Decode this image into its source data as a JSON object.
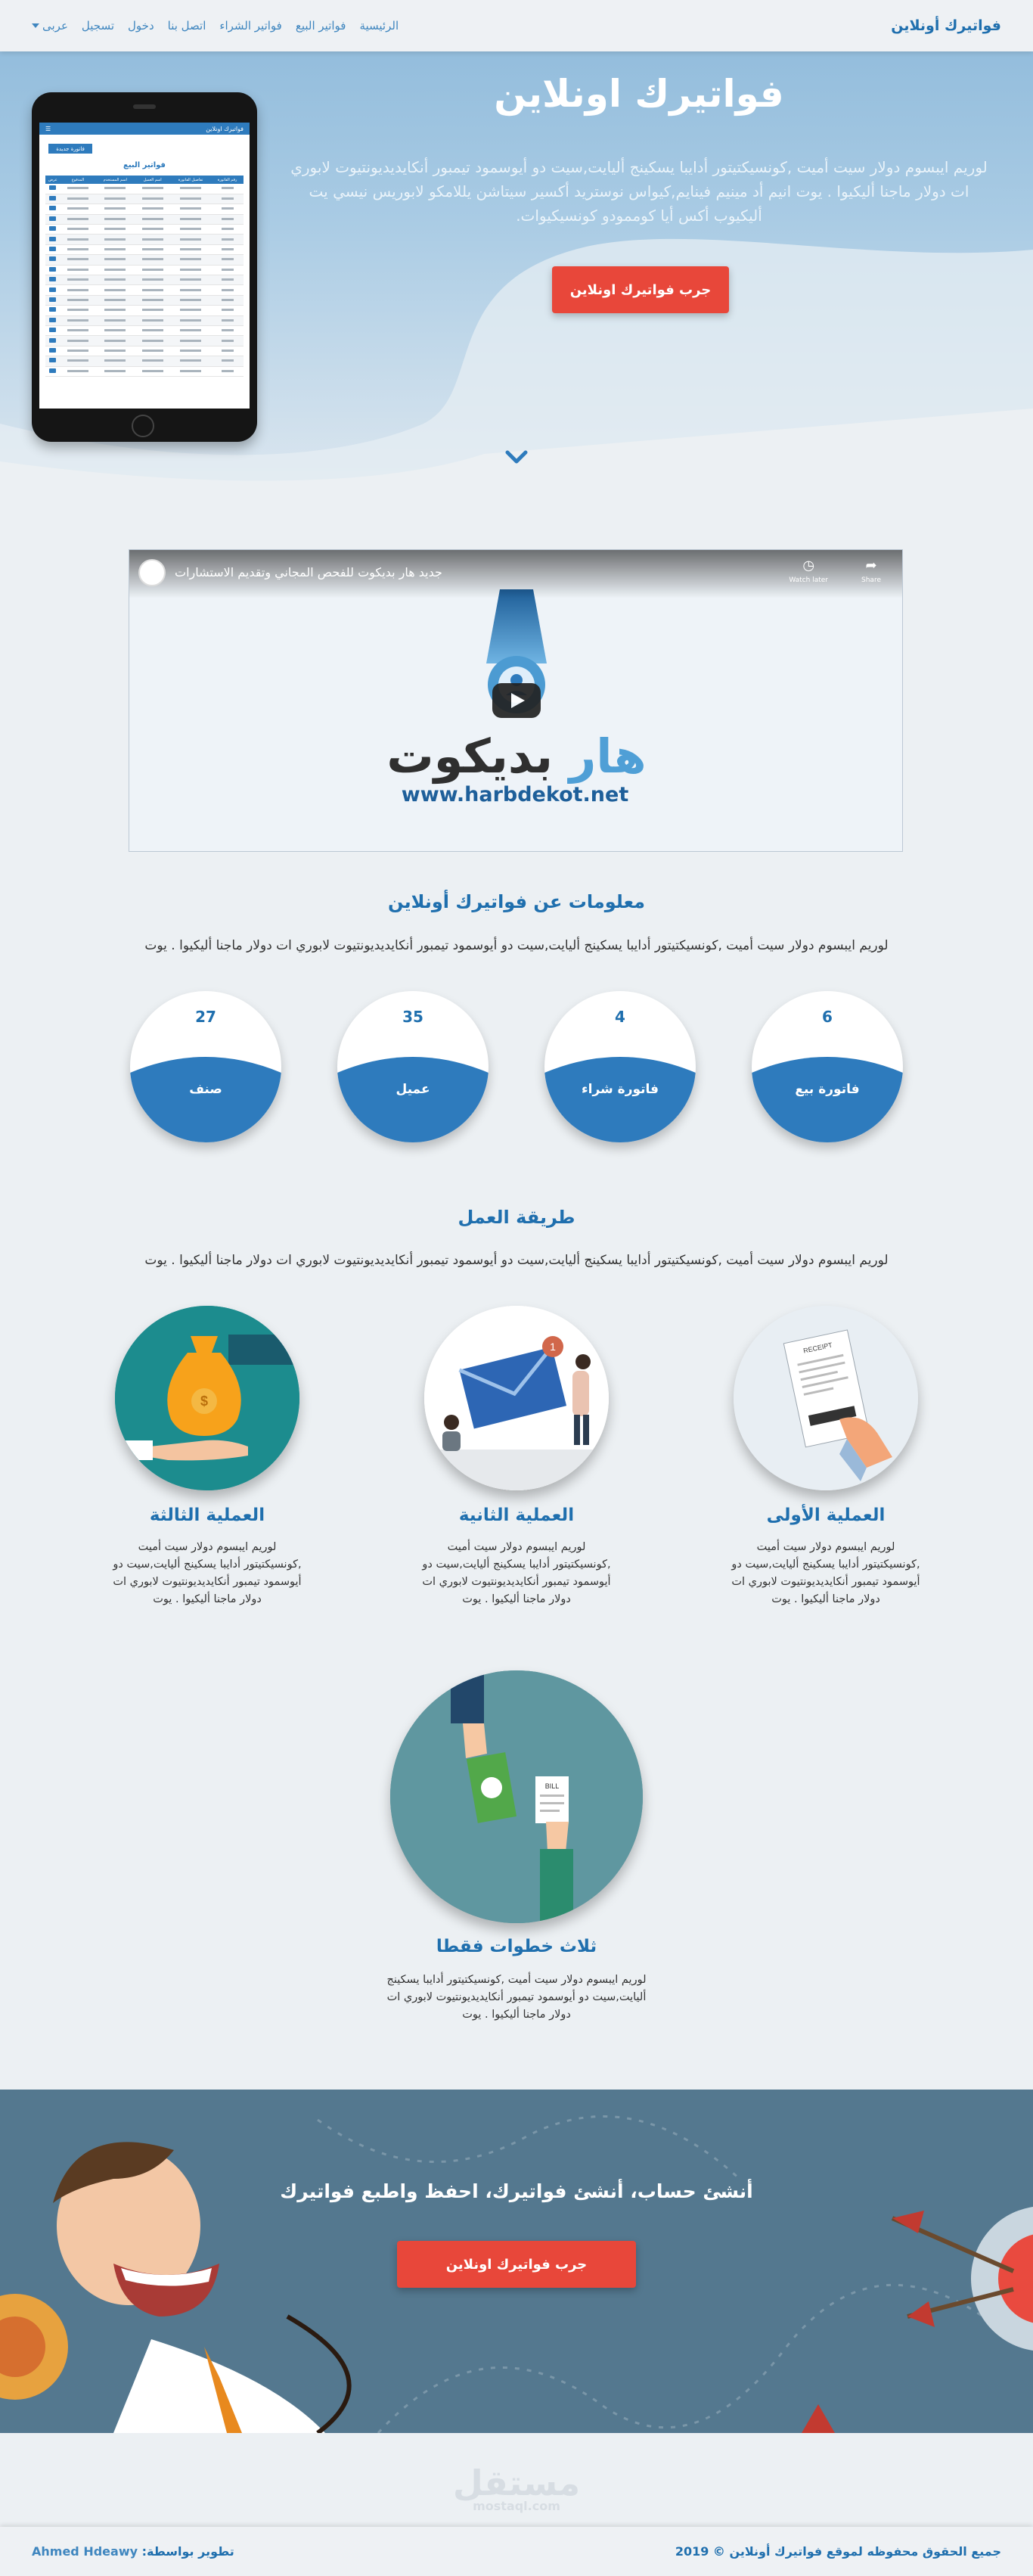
{
  "nav": {
    "brand": "فواتيرك أونلاين",
    "links": [
      "الرئيسية",
      "فواتير البيع",
      "فواتير الشراء",
      "اتصل بنا",
      "دخول",
      "تسجيل"
    ],
    "language": "عربى"
  },
  "hero": {
    "title": "فواتيرك اونلاين",
    "text": "لوريم ايبسوم دولار سيت أميت ,كونسيكتيتور أدايبا يسكينج أليايت,سيت دو أيوسمود تيمبور أنكايديديونتيوت لابوري ات دولار ماجنا أليكيوا . يوت انيم أد مينيم فينايم,كيواس نوستريد أكسير سيتاشن يللامكو لابوريس نيسي يت أليكيوب أكس أيا كوممودو كونسيكيوات.",
    "button": "جرب فواتيرك اونلاين"
  },
  "phone": {
    "app_title": "فواتيرك اونلاين",
    "new_button": "فاتورة جديدة",
    "table_title": "فواتير البيع",
    "columns": [
      "رقم الفاتورة",
      "تفاصيل الفاتورة",
      "اسم العميل",
      "اسم المستخدم",
      "المدفوع",
      "عرض"
    ]
  },
  "video": {
    "title": "جديد هار بديكوت للفحص المجاني وتقديم الاستشارات",
    "watch_later": "Watch later",
    "share": "Share",
    "brand_dark": "بديكوت",
    "brand_light": "هار",
    "url": "www.harbdekot.net"
  },
  "info": {
    "title": "معلومات عن فواتيرك أونلاين",
    "text": "لوريم ايبسوم دولار سيت أميت ,كونسيكتيتور أدايبا يسكينج أليايت,سيت دو أيوسمود تيمبور أنكايديديونتيوت لابوري ات دولار ماجنا أليكيوا . يوت",
    "stats": [
      {
        "number": "6",
        "label": "فاتورة بيع"
      },
      {
        "number": "4",
        "label": "فاتورة شراء"
      },
      {
        "number": "35",
        "label": "عميل"
      },
      {
        "number": "27",
        "label": "صنف"
      }
    ]
  },
  "work": {
    "title": "طريقة العمل",
    "text": "لوريم ايبسوم دولار سيت أميت ,كونسيكتيتور أدايبا يسكينج أليايت,سيت دو أيوسمود تيمبور أنكايديديونتيوت لابوري ات دولار ماجنا أليكيوا . يوت",
    "steps": [
      {
        "title": "العملية الأولى",
        "text": "لوريم ايبسوم دولار سيت أميت ,كونسيكتيتور أدايبا يسكينج أليايت,سيت دو أيوسمود تيمبور أنكايديديونتيوت لابوري ات دولار ماجنا أليكيوا . يوت"
      },
      {
        "title": "العملية الثانية",
        "text": "لوريم ايبسوم دولار سيت أميت ,كونسيكتيتور أدايبا يسكينج أليايت,سيت دو أيوسمود تيمبور أنكايديديونتيوت لابوري ات دولار ماجنا أليكيوا . يوت"
      },
      {
        "title": "العملية الثالثة",
        "text": "لوريم ايبسوم دولار سيت أميت ,كونسيكتيتور أدايبا يسكينج أليايت,سيت دو أيوسمود تيمبور أنكايديديونتيوت لابوري ات دولار ماجنا أليكيوا . يوت"
      },
      {
        "title": "ثلاث خطوات فقطا",
        "text": "لوريم ايبسوم دولار سيت أميت ,كونسيكتيتور أدايبا يسكينج أليايت,سيت دو أيوسمود تيمبور أنكايديديونتيوت لابوري ات دولار ماجنا أليكيوا . يوت"
      }
    ],
    "receipt_label": "RECEIPT",
    "bill_label": "BILL"
  },
  "cta": {
    "title": "أنشئ حساب، أنشئ فواتيرك، احفظ واطبع فواتيرك",
    "button": "جرب فواتيرك اونلاين"
  },
  "watermark": {
    "arabic": "مستقل",
    "latin": "mostaql.com"
  },
  "footer": {
    "copyright": "جميع الحقوق محفوظه لموقع فواتيرك أونلاين © 2019",
    "dev_label": "تطوير بواسطة:",
    "dev_name": "Ahmed Hdeawy"
  },
  "colors": {
    "primary": "#1f6fae",
    "accent": "#e8473a",
    "hero": "#8db9da",
    "cta_bg": "#54788f"
  }
}
